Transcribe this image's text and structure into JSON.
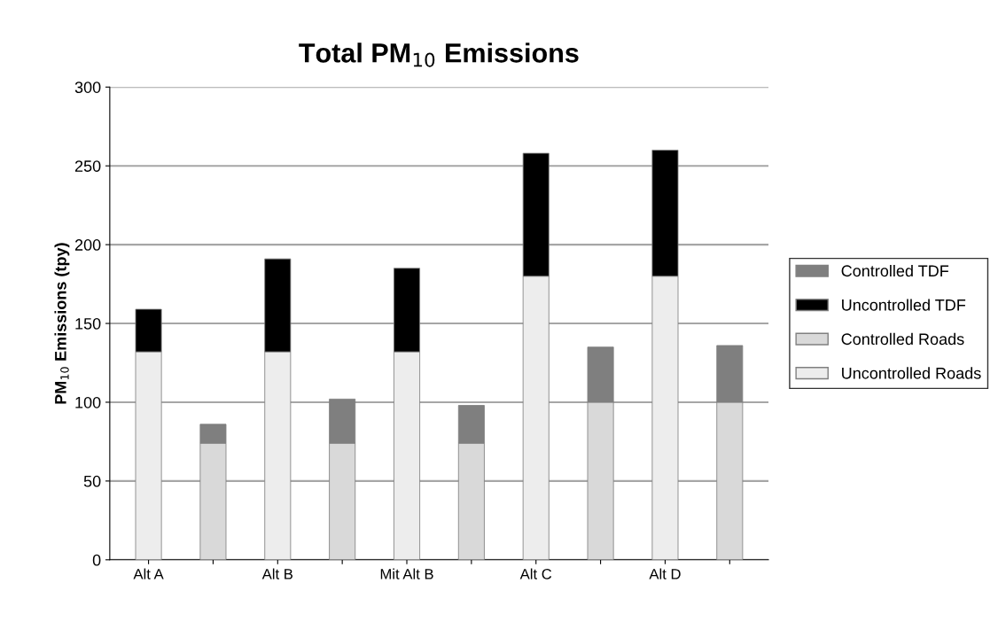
{
  "chart_data": {
    "type": "bar",
    "title": "Total PM$_{10}$ Emissions",
    "ylabel": "PM$_{10}$ Emissions (tpy)",
    "categories": [
      "Alt A",
      null,
      "Alt B",
      null,
      "Mit Alt B",
      null,
      "Alt C",
      null,
      "Alt D",
      null
    ],
    "stacked": true,
    "ylim": [
      0,
      300
    ],
    "yticks": [
      0,
      50,
      100,
      150,
      200,
      250,
      300
    ],
    "grid": "y",
    "legend": "right",
    "series": [
      {
        "name": "Uncontrolled Roads",
        "color": "#ededed",
        "values": [
          132,
          null,
          132,
          null,
          132,
          null,
          180,
          null,
          180,
          null
        ]
      },
      {
        "name": "Controlled Roads",
        "color": "#d9d9d9",
        "values": [
          null,
          74,
          null,
          74,
          null,
          74,
          null,
          100,
          null,
          100
        ]
      },
      {
        "name": "Uncontrolled TDF",
        "color": "#000000",
        "values": [
          27,
          null,
          59,
          null,
          53,
          null,
          78,
          null,
          80,
          null
        ]
      },
      {
        "name": "Controlled TDF",
        "color": "#7f7f7f",
        "values": [
          null,
          12,
          null,
          28,
          null,
          24,
          null,
          35,
          null,
          36
        ]
      }
    ]
  }
}
